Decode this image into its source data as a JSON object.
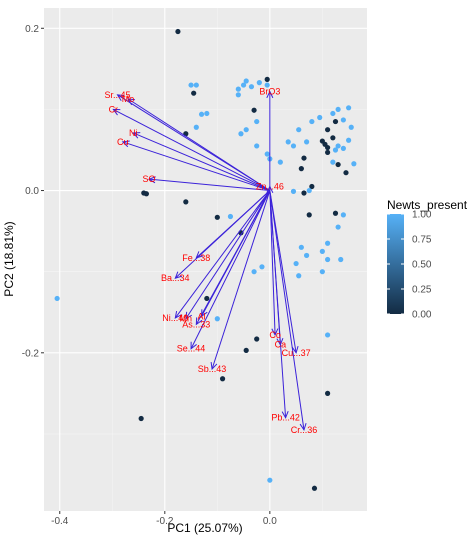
{
  "chart_data": {
    "type": "scatter",
    "subtype": "pca-biplot",
    "xlabel": "PC1 (25.07%)",
    "ylabel": "PC2 (18.81%)",
    "xlim": [
      -0.43,
      0.185
    ],
    "ylim": [
      -0.395,
      0.225
    ],
    "x_ticks": [
      -0.4,
      -0.2,
      0.0
    ],
    "x_tick_labels": [
      "-0.4",
      "-0.2",
      "0.0"
    ],
    "y_ticks": [
      -0.2,
      0.0,
      0.2
    ],
    "y_tick_labels": [
      "-0.2",
      "0.0",
      "0.2"
    ],
    "grid": true,
    "background": "#ebebeb",
    "legend": {
      "title": "Newts_present",
      "position": "right",
      "ticks": [
        0.0,
        0.25,
        0.5,
        0.75,
        1.0
      ],
      "tick_labels": [
        "0.00",
        "0.25",
        "0.50",
        "0.75",
        "1.00"
      ],
      "low_color": "#132b43",
      "high_color": "#56b1f7"
    },
    "arrow_color": "#3b22d9",
    "label_color": "#ff0000",
    "arrow_origin": [
      0.0,
      0.0
    ],
    "loadings": [
      {
        "label": "Sr...45",
        "x": -0.29,
        "y": 0.118
      },
      {
        "label": "Mo",
        "x": -0.27,
        "y": 0.113
      },
      {
        "label": "Cr",
        "x": -0.298,
        "y": 0.1
      },
      {
        "label": "Ni",
        "x": -0.26,
        "y": 0.071
      },
      {
        "label": "Cu",
        "x": -0.28,
        "y": 0.06
      },
      {
        "label": "SO",
        "x": -0.23,
        "y": 0.014
      },
      {
        "label": "BrO3",
        "x": 0.0,
        "y": 0.122
      },
      {
        "label": "Zn...46",
        "x": 0.0,
        "y": 0.005
      },
      {
        "label": "Fe...38",
        "x": -0.14,
        "y": -0.083
      },
      {
        "label": "Ba...34",
        "x": -0.18,
        "y": -0.108
      },
      {
        "label": "Ni...40",
        "x": -0.18,
        "y": -0.157
      },
      {
        "label": "Mn",
        "x": -0.16,
        "y": -0.158
      },
      {
        "label": "Al",
        "x": -0.13,
        "y": -0.155
      },
      {
        "label": "As...33",
        "x": -0.14,
        "y": -0.165
      },
      {
        "label": "Se...44",
        "x": -0.15,
        "y": -0.195
      },
      {
        "label": "Sb...43",
        "x": -0.11,
        "y": -0.22
      },
      {
        "label": "Co",
        "x": 0.01,
        "y": -0.178
      },
      {
        "label": "Ca",
        "x": 0.02,
        "y": -0.19
      },
      {
        "label": "Cu...37",
        "x": 0.05,
        "y": -0.2
      },
      {
        "label": "Pb...42",
        "x": 0.03,
        "y": -0.28
      },
      {
        "label": "Cr...36",
        "x": 0.065,
        "y": -0.295
      }
    ],
    "points": [
      {
        "x": -0.175,
        "y": 0.196,
        "v": 0
      },
      {
        "x": -0.15,
        "y": 0.13,
        "v": 1
      },
      {
        "x": -0.14,
        "y": 0.13,
        "v": 1
      },
      {
        "x": -0.145,
        "y": 0.12,
        "v": 0
      },
      {
        "x": -0.13,
        "y": 0.094,
        "v": 1
      },
      {
        "x": -0.12,
        "y": 0.095,
        "v": 1
      },
      {
        "x": -0.16,
        "y": 0.07,
        "v": 0
      },
      {
        "x": -0.14,
        "y": 0.078,
        "v": 1
      },
      {
        "x": -0.05,
        "y": 0.13,
        "v": 1
      },
      {
        "x": -0.06,
        "y": 0.125,
        "v": 1
      },
      {
        "x": -0.045,
        "y": 0.135,
        "v": 1
      },
      {
        "x": -0.035,
        "y": 0.128,
        "v": 1
      },
      {
        "x": -0.02,
        "y": 0.133,
        "v": 1
      },
      {
        "x": -0.005,
        "y": 0.137,
        "v": 0
      },
      {
        "x": -0.005,
        "y": 0.13,
        "v": 1
      },
      {
        "x": -0.06,
        "y": 0.118,
        "v": 1
      },
      {
        "x": -0.03,
        "y": 0.099,
        "v": 0
      },
      {
        "x": -0.025,
        "y": 0.085,
        "v": 1
      },
      {
        "x": -0.045,
        "y": 0.075,
        "v": 1
      },
      {
        "x": -0.055,
        "y": 0.07,
        "v": 1
      },
      {
        "x": -0.025,
        "y": 0.055,
        "v": 1
      },
      {
        "x": -0.005,
        "y": 0.045,
        "v": 1
      },
      {
        "x": 0.0,
        "y": 0.039,
        "v": 1
      },
      {
        "x": 0.02,
        "y": 0.035,
        "v": 1
      },
      {
        "x": 0.035,
        "y": 0.06,
        "v": 1
      },
      {
        "x": 0.045,
        "y": 0.055,
        "v": 1
      },
      {
        "x": 0.055,
        "y": 0.075,
        "v": 1
      },
      {
        "x": 0.07,
        "y": 0.06,
        "v": 1
      },
      {
        "x": 0.08,
        "y": 0.085,
        "v": 1
      },
      {
        "x": 0.095,
        "y": 0.09,
        "v": 1
      },
      {
        "x": 0.11,
        "y": 0.075,
        "v": 0
      },
      {
        "x": 0.12,
        "y": 0.095,
        "v": 1
      },
      {
        "x": 0.125,
        "y": 0.085,
        "v": 0
      },
      {
        "x": 0.13,
        "y": 0.1,
        "v": 1
      },
      {
        "x": 0.14,
        "y": 0.087,
        "v": 1
      },
      {
        "x": 0.15,
        "y": 0.102,
        "v": 1
      },
      {
        "x": 0.155,
        "y": 0.078,
        "v": 1
      },
      {
        "x": 0.1,
        "y": 0.061,
        "v": 0
      },
      {
        "x": 0.105,
        "y": 0.057,
        "v": 0
      },
      {
        "x": 0.11,
        "y": 0.053,
        "v": 0
      },
      {
        "x": 0.12,
        "y": 0.065,
        "v": 0
      },
      {
        "x": 0.125,
        "y": 0.05,
        "v": 1
      },
      {
        "x": 0.13,
        "y": 0.055,
        "v": 1
      },
      {
        "x": 0.14,
        "y": 0.052,
        "v": 1
      },
      {
        "x": 0.15,
        "y": 0.062,
        "v": 1
      },
      {
        "x": 0.11,
        "y": 0.047,
        "v": 0
      },
      {
        "x": 0.12,
        "y": 0.035,
        "v": 1
      },
      {
        "x": 0.13,
        "y": 0.032,
        "v": 0
      },
      {
        "x": 0.145,
        "y": 0.022,
        "v": 0
      },
      {
        "x": 0.16,
        "y": 0.033,
        "v": 1
      },
      {
        "x": 0.065,
        "y": 0.04,
        "v": 0
      },
      {
        "x": 0.06,
        "y": 0.027,
        "v": 0
      },
      {
        "x": 0.08,
        "y": 0.005,
        "v": 0
      },
      {
        "x": 0.075,
        "y": 0.0,
        "v": 1
      },
      {
        "x": 0.065,
        "y": -0.003,
        "v": 0
      },
      {
        "x": 0.045,
        "y": -0.001,
        "v": 1
      },
      {
        "x": 0.075,
        "y": -0.03,
        "v": 0
      },
      {
        "x": 0.125,
        "y": -0.028,
        "v": 0
      },
      {
        "x": 0.14,
        "y": -0.03,
        "v": 1
      },
      {
        "x": 0.13,
        "y": -0.045,
        "v": 1
      },
      {
        "x": 0.135,
        "y": -0.085,
        "v": 1
      },
      {
        "x": 0.11,
        "y": -0.065,
        "v": 1
      },
      {
        "x": 0.1,
        "y": -0.075,
        "v": 1
      },
      {
        "x": 0.06,
        "y": -0.07,
        "v": 1
      },
      {
        "x": 0.07,
        "y": -0.08,
        "v": 1
      },
      {
        "x": 0.05,
        "y": -0.09,
        "v": 1
      },
      {
        "x": 0.11,
        "y": -0.085,
        "v": 1
      },
      {
        "x": 0.1,
        "y": -0.1,
        "v": 1
      },
      {
        "x": 0.055,
        "y": -0.105,
        "v": 1
      },
      {
        "x": -0.03,
        "y": -0.1,
        "v": 1
      },
      {
        "x": -0.015,
        "y": -0.094,
        "v": 1
      },
      {
        "x": -0.24,
        "y": -0.003,
        "v": 0
      },
      {
        "x": -0.235,
        "y": -0.004,
        "v": 0
      },
      {
        "x": -0.16,
        "y": -0.014,
        "v": 0
      },
      {
        "x": -0.1,
        "y": -0.033,
        "v": 0
      },
      {
        "x": -0.075,
        "y": -0.032,
        "v": 1
      },
      {
        "x": -0.055,
        "y": -0.052,
        "v": 0
      },
      {
        "x": -0.12,
        "y": -0.133,
        "v": 0
      },
      {
        "x": -0.1,
        "y": -0.158,
        "v": 1
      },
      {
        "x": -0.045,
        "y": -0.197,
        "v": 0
      },
      {
        "x": -0.025,
        "y": -0.183,
        "v": 0
      },
      {
        "x": 0.11,
        "y": -0.178,
        "v": 1
      },
      {
        "x": -0.09,
        "y": -0.232,
        "v": 0
      },
      {
        "x": 0.11,
        "y": -0.25,
        "v": 0
      },
      {
        "x": -0.245,
        "y": -0.281,
        "v": 0
      },
      {
        "x": -0.405,
        "y": -0.133,
        "v": 1
      },
      {
        "x": 0.0,
        "y": -0.357,
        "v": 1
      },
      {
        "x": 0.085,
        "y": -0.367,
        "v": 0
      }
    ]
  }
}
